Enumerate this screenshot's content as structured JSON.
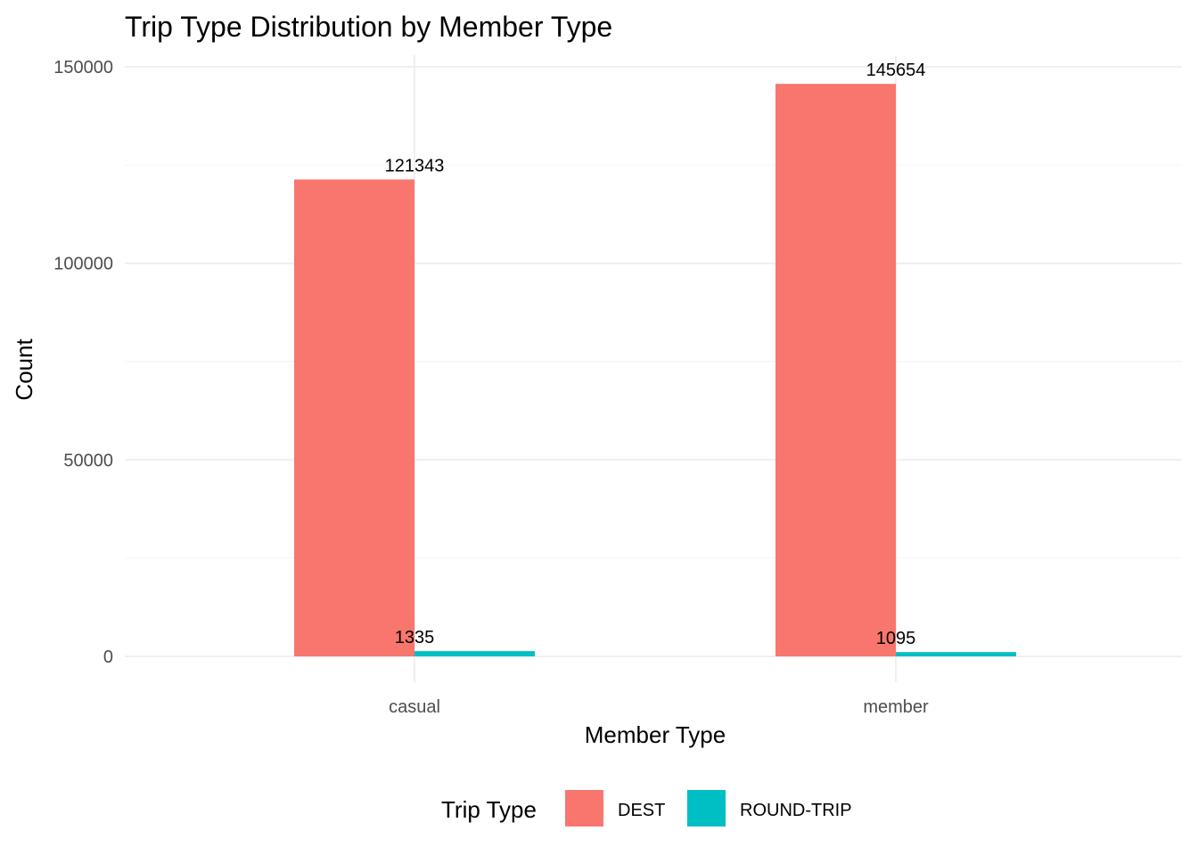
{
  "chart_data": {
    "type": "bar",
    "title": "Trip Type Distribution by Member Type",
    "xlabel": "Member Type",
    "ylabel": "Count",
    "categories": [
      "casual",
      "member"
    ],
    "series": [
      {
        "name": "DEST",
        "color": "#F8766D",
        "values": [
          121343,
          145654
        ]
      },
      {
        "name": "ROUND-TRIP",
        "color": "#00BFC4",
        "values": [
          1335,
          1095
        ]
      }
    ],
    "y_ticks": [
      0,
      50000,
      100000,
      150000
    ],
    "ylim": [
      0,
      152000
    ],
    "grid": true,
    "legend": {
      "title": "Trip Type",
      "placement": "bottom"
    }
  }
}
